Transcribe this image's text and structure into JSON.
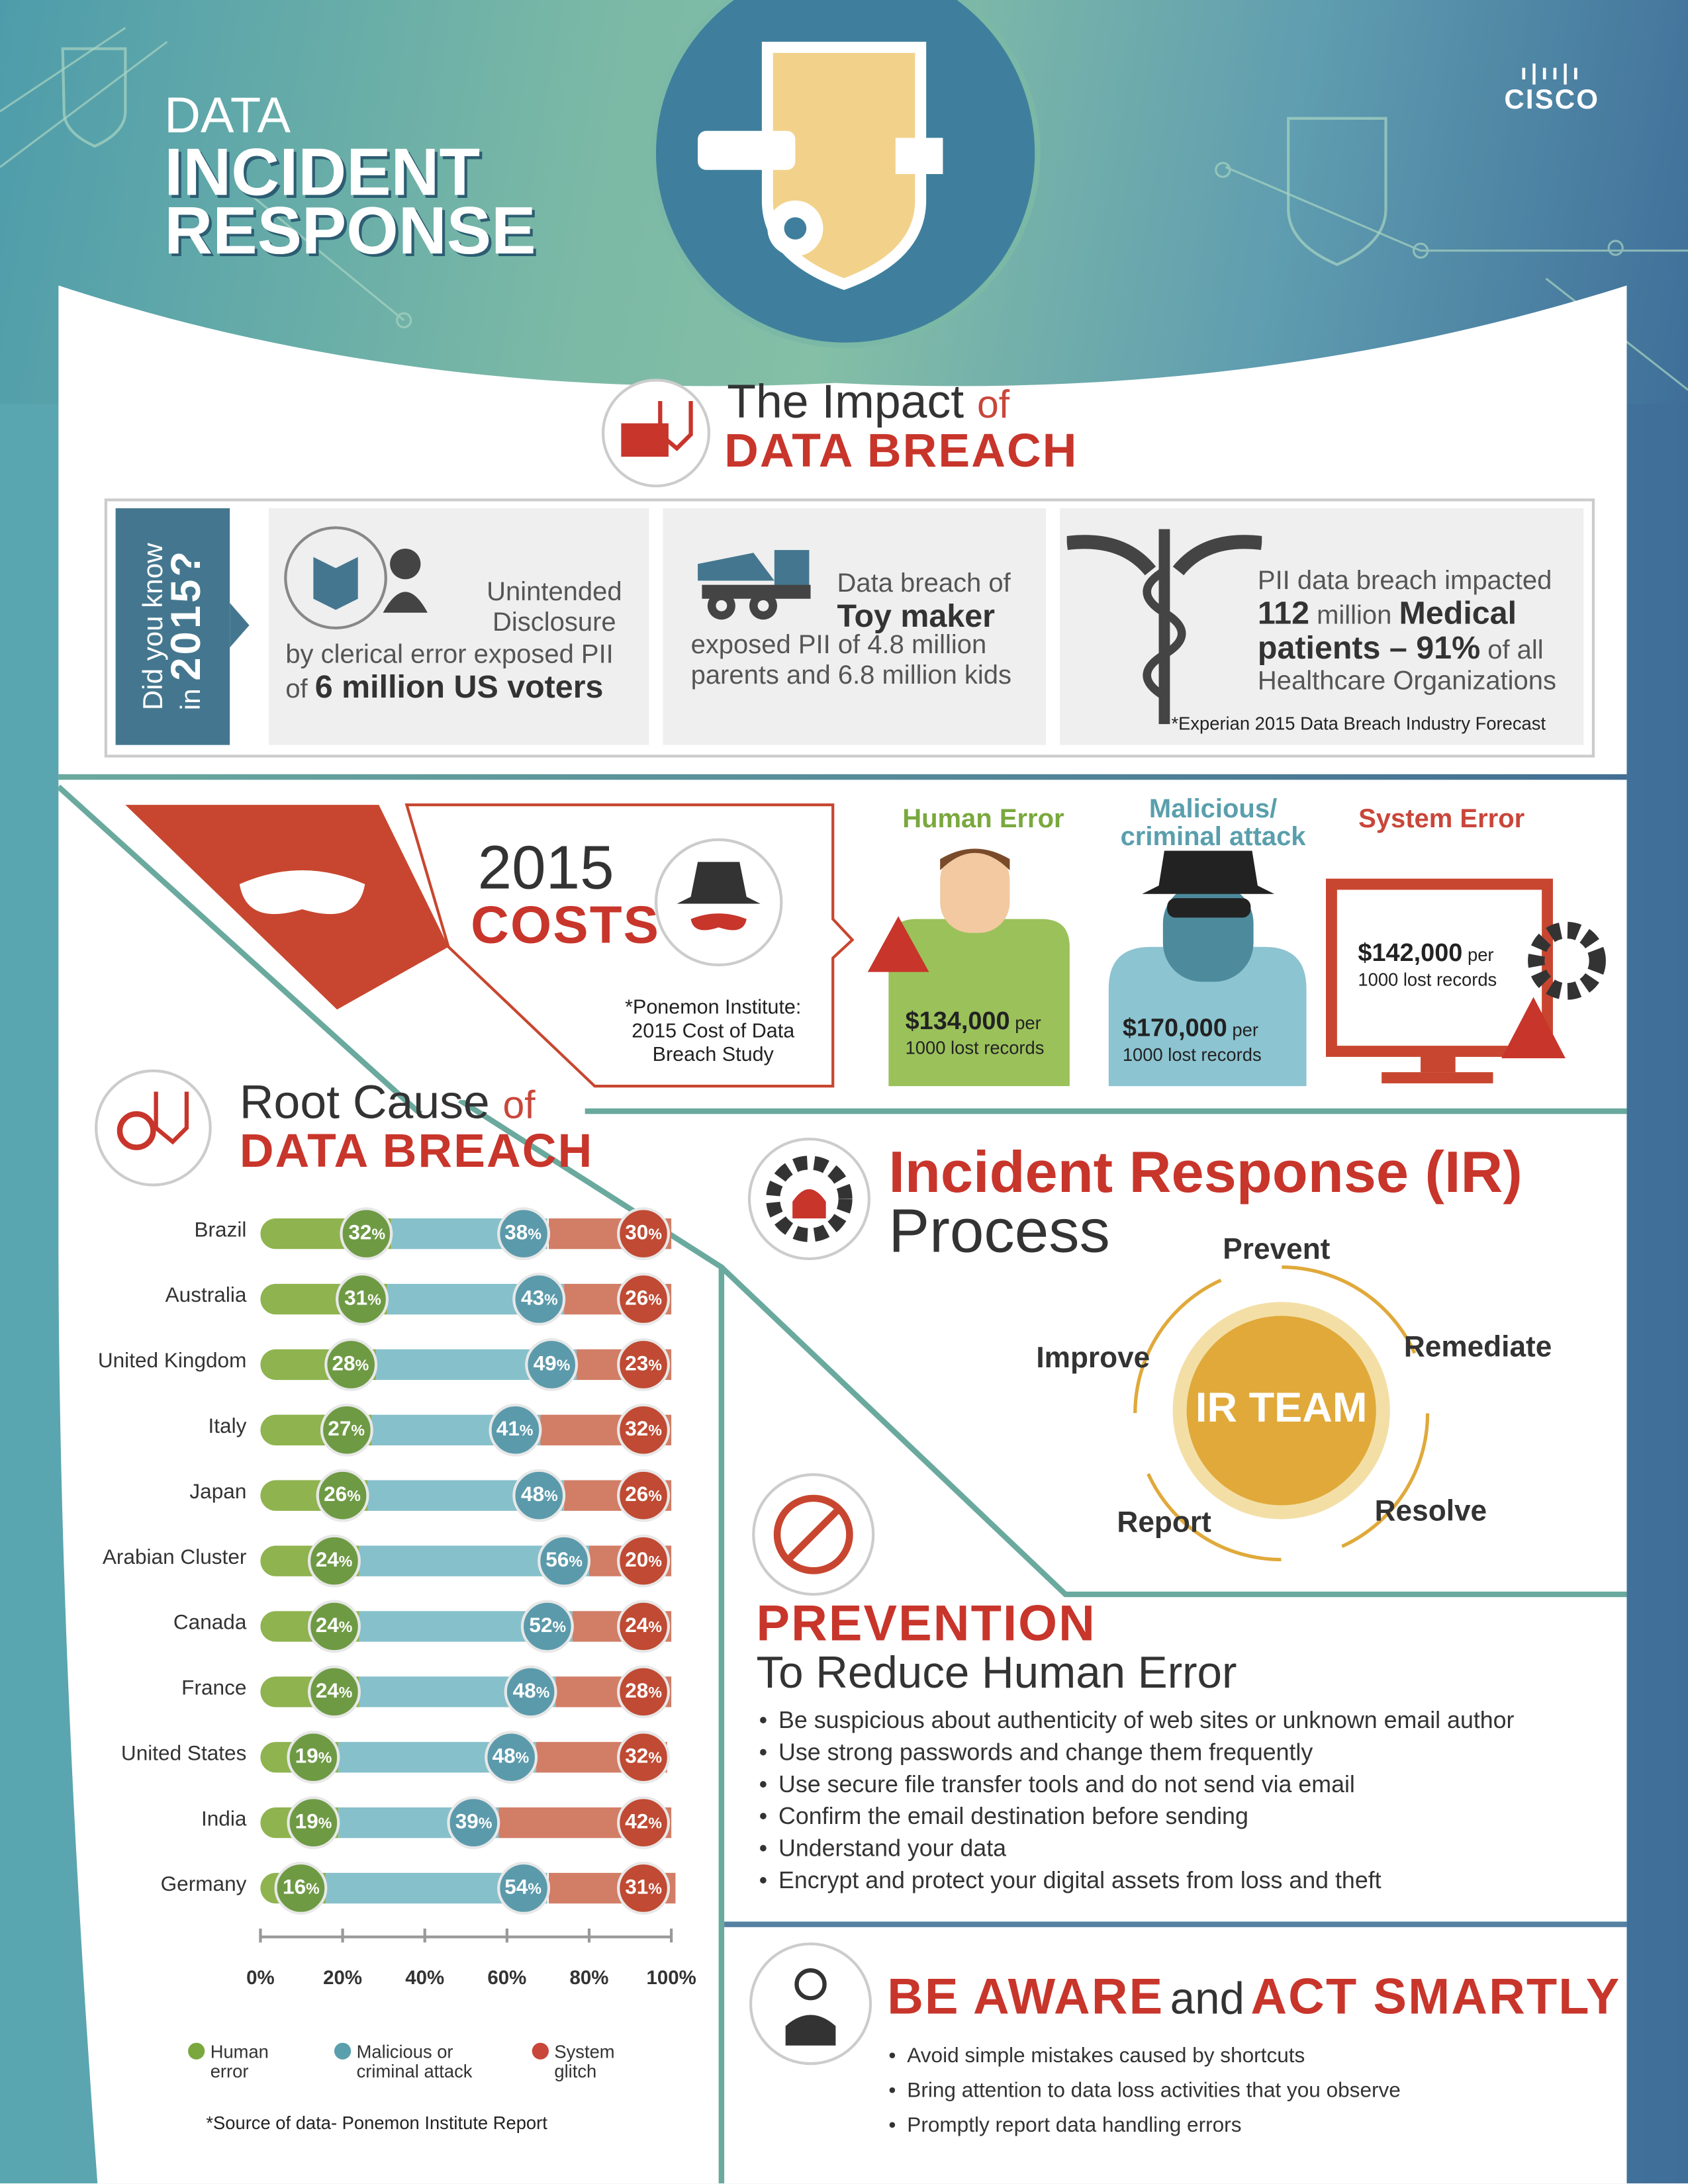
{
  "header": {
    "title_line1": "DATA",
    "title_line2": "INCIDENT",
    "title_line3": "RESPONSE",
    "logo_text": "CISCO"
  },
  "impact": {
    "title_a": "The Impact",
    "title_of": "of",
    "title_b": "DATA BREACH",
    "did_you_know": "Did you know",
    "did_you_know_year_prefix": "in",
    "did_you_know_year": "2015?",
    "cards": [
      {
        "heading": "Unintended Disclosure",
        "line1": "by clerical error exposed PII",
        "of": "of",
        "highlight": "6 million US voters"
      },
      {
        "line1": "Data breach of",
        "highlight": "Toy maker",
        "line2": "exposed PII of 4.8 million parents and 6.8 million kids"
      },
      {
        "line1": "PII data breach impacted",
        "num": "112",
        "mid": "million",
        "highlight": "Medical",
        "highlight2": "patients – 91%",
        "tail": "of all",
        "line3": "Healthcare Organizations",
        "source": "*Experian 2015 Data Breach Industry Forecast"
      }
    ]
  },
  "costs": {
    "year": "2015",
    "title": "COSTS",
    "source": "*Ponemon Institute: 2015 Cost of Data Breach Study",
    "categories": [
      {
        "label": "Human Error",
        "amount": "$134,000",
        "per": "per",
        "unit": "1000 lost records",
        "color": "#7aa83e"
      },
      {
        "label": "Malicious/ criminal attack",
        "amount": "$170,000",
        "per": "per",
        "unit": "1000 lost records",
        "color": "#5a9fad"
      },
      {
        "label": "System Error",
        "amount": "$142,000",
        "per": "per",
        "unit": "1000 lost records",
        "color": "#c9463a"
      }
    ]
  },
  "root_cause": {
    "title_a": "Root Cause",
    "title_of": "of",
    "title_b": "DATA BREACH",
    "source": "*Source of data- Ponemon Institute Report"
  },
  "chart_data": {
    "type": "bar",
    "stacked": true,
    "orientation": "horizontal",
    "categories": [
      "Brazil",
      "Australia",
      "United Kingdom",
      "Italy",
      "Japan",
      "Arabian Cluster",
      "Canada",
      "France",
      "United States",
      "India",
      "Germany"
    ],
    "series": [
      {
        "name": "Human error",
        "color": "#8fb34f",
        "values": [
          32,
          31,
          28,
          27,
          26,
          24,
          24,
          24,
          19,
          19,
          16
        ]
      },
      {
        "name": "Malicious or criminal attack",
        "color": "#86c0cb",
        "values": [
          38,
          43,
          49,
          41,
          48,
          56,
          52,
          48,
          48,
          39,
          54
        ]
      },
      {
        "name": "System glitch",
        "color": "#d27d66",
        "values": [
          30,
          26,
          23,
          32,
          26,
          20,
          24,
          28,
          32,
          42,
          31
        ]
      }
    ],
    "xticks": [
      "0%",
      "20%",
      "40%",
      "60%",
      "80%",
      "100%"
    ],
    "xlim": [
      0,
      100
    ],
    "legend": "bottom",
    "unit": "%"
  },
  "ir": {
    "title_a": "Incident Response (IR)",
    "title_b": "Process",
    "center": "IR TEAM",
    "steps": [
      "Prevent",
      "Remediate",
      "Resolve",
      "Report",
      "Improve"
    ]
  },
  "prevention": {
    "title": "PREVENTION",
    "subtitle": "To Reduce Human Error",
    "items": [
      "Be suspicious about authenticity of web sites or unknown email author",
      "Use strong passwords and change them frequently",
      "Use secure file transfer tools and do not send via email",
      "Confirm the email destination before sending",
      "Understand your data",
      "Encrypt and protect your digital assets from loss and theft"
    ]
  },
  "aware": {
    "title_a": "BE AWARE",
    "title_and": "and",
    "title_b": "ACT SMARTLY",
    "items": [
      "Avoid simple mistakes caused by shortcuts",
      "Bring attention to data loss activities that you observe",
      "Promptly report data handling errors"
    ]
  }
}
